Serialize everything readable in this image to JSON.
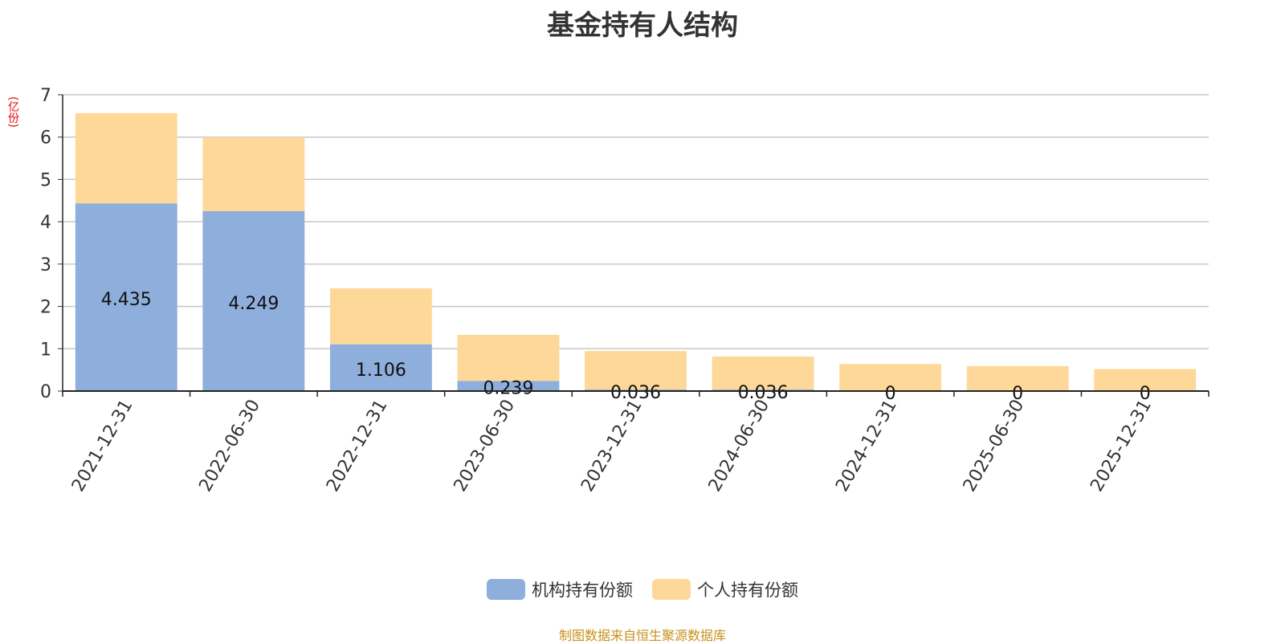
{
  "chart_data": {
    "type": "bar",
    "stacked": true,
    "title": "基金持有人结构",
    "ylabel": "(亿份)",
    "ylim": [
      0,
      7
    ],
    "yticks": [
      0,
      1,
      2,
      3,
      4,
      5,
      6,
      7
    ],
    "grid": true,
    "legend_position": "bottom",
    "categories": [
      "2021-12-31",
      "2022-06-30",
      "2022-12-31",
      "2023-06-30",
      "2023-12-31",
      "2024-06-30",
      "2024-12-31",
      "2025-06-30",
      "2025-12-31"
    ],
    "series": [
      {
        "name": "机构持有份额",
        "color": "#8eaedb",
        "values": [
          4.435,
          4.249,
          1.106,
          0.239,
          0.036,
          0.036,
          0,
          0,
          0
        ],
        "labels": [
          "4.435",
          "4.249",
          "1.106",
          "0.239",
          "0.036",
          "0.036",
          "0",
          "0",
          "0"
        ]
      },
      {
        "name": "个人持有份额",
        "color": "#fed899",
        "values": [
          2.13,
          1.75,
          1.32,
          1.09,
          0.91,
          0.78,
          0.64,
          0.59,
          0.52
        ]
      }
    ]
  },
  "source": "制图数据来自恒生聚源数据库"
}
